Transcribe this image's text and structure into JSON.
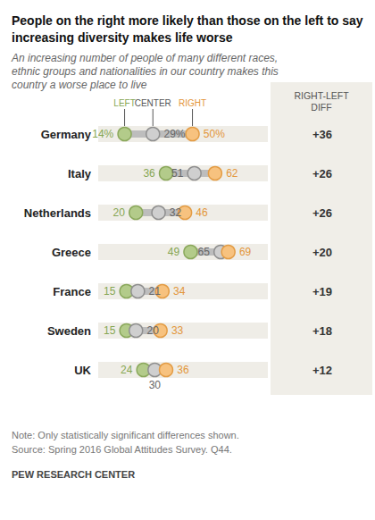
{
  "chart_data": {
    "type": "dot",
    "title": "People on the right more likely than those on the left to say increasing diversity makes life worse",
    "subtitle": "An increasing number of people of many different races, ethnic groups and nationalities in our country makes this country a worse place to live",
    "categories": [
      "Germany",
      "Italy",
      "Netherlands",
      "Greece",
      "France",
      "Sweden",
      "UK"
    ],
    "series": [
      {
        "name": "LEFT",
        "color": "#b3cb8a",
        "values": [
          14,
          36,
          20,
          49,
          15,
          15,
          24
        ],
        "value_labels": [
          "14%",
          "36",
          "20",
          "49",
          "15",
          "15",
          "24"
        ]
      },
      {
        "name": "CENTER",
        "color": "#cfcfcf",
        "values": [
          29,
          51,
          32,
          65,
          21,
          20,
          30
        ],
        "value_labels": [
          "29%",
          "51",
          "32",
          "65",
          "21",
          "20",
          "30"
        ]
      },
      {
        "name": "RIGHT",
        "color": "#f7c27f",
        "values": [
          50,
          62,
          46,
          69,
          34,
          33,
          36
        ],
        "value_labels": [
          "50%",
          "62",
          "46",
          "69",
          "34",
          "33",
          "36"
        ]
      }
    ],
    "diff": {
      "title": "RIGHT-LEFT DIFF",
      "values": [
        36,
        26,
        26,
        20,
        19,
        18,
        12
      ],
      "value_labels": [
        "+36",
        "+26",
        "+26",
        "+20",
        "+19",
        "+18",
        "+12"
      ]
    },
    "xlim": [
      0,
      90
    ],
    "tick_labels": "y",
    "grid": false,
    "data_labels": true,
    "notes": [
      "Note: Only statistically significant differences shown.",
      "Source: Spring 2016 Global Attitudes Survey. Q44."
    ],
    "credit": "PEW RESEARCH CENTER"
  }
}
